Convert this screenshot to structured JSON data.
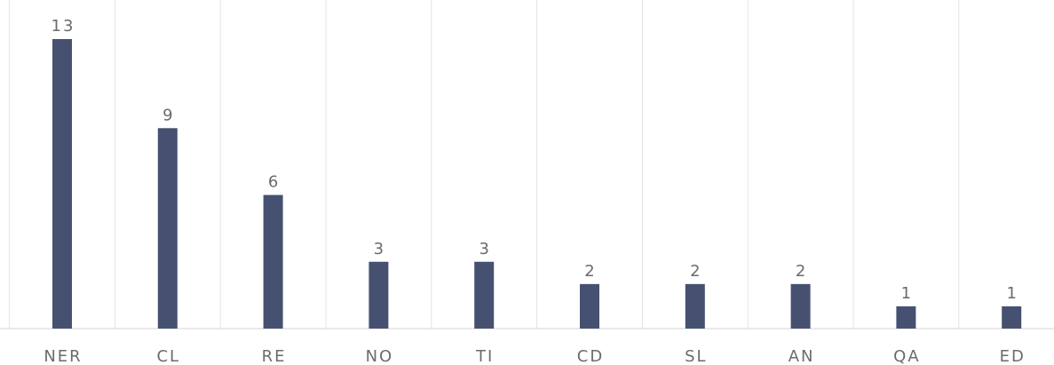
{
  "chart_data": {
    "type": "bar",
    "categories": [
      "NER",
      "CL",
      "RE",
      "NO",
      "TI",
      "CD",
      "SL",
      "AN",
      "QA",
      "ED"
    ],
    "values": [
      13,
      9,
      6,
      3,
      3,
      2,
      2,
      2,
      1,
      1
    ],
    "color": "#465171",
    "ylim": [
      0,
      13
    ]
  }
}
